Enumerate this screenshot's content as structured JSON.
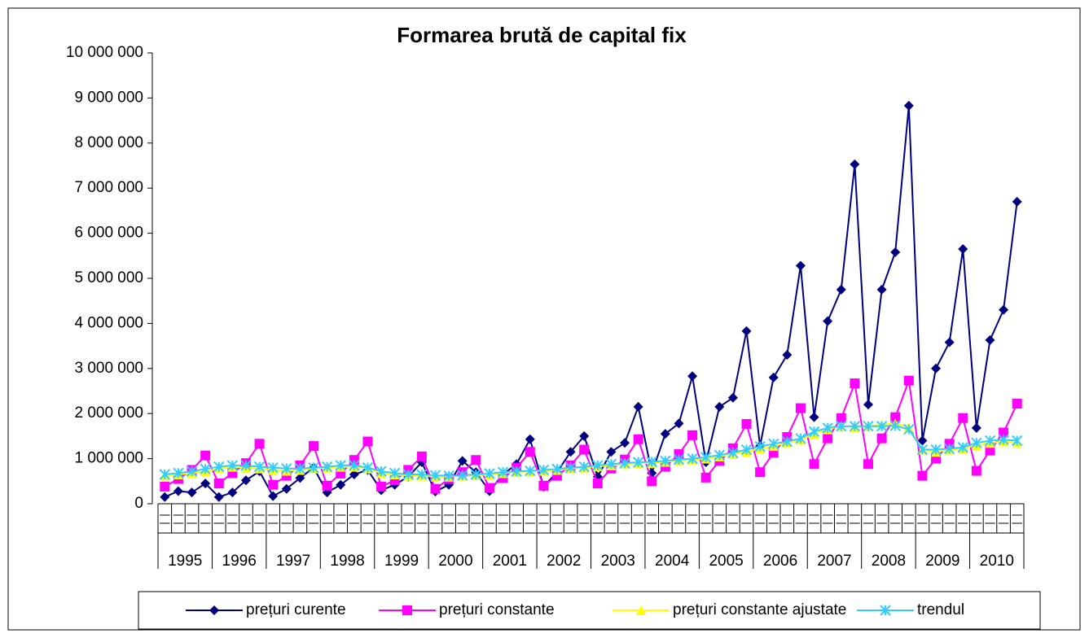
{
  "chart_data": {
    "type": "line",
    "title": "Formarea brută de capital fix",
    "categories": [
      null,
      null,
      null,
      null,
      null,
      null,
      null,
      null,
      null,
      null,
      null,
      null,
      null,
      null,
      null,
      null,
      null,
      null,
      null,
      null,
      null,
      null,
      null,
      null,
      null,
      null,
      null,
      null,
      null,
      null,
      null,
      null,
      null,
      null,
      null,
      null,
      null,
      null,
      null,
      null,
      null,
      null,
      null,
      null,
      null,
      null,
      null,
      null,
      null,
      null,
      null,
      null,
      null,
      null,
      null,
      null,
      null,
      null,
      null,
      null,
      null,
      null,
      null,
      null
    ],
    "years": [
      "1995",
      "1996",
      "1997",
      "1998",
      "1999",
      "2000",
      "2001",
      "2002",
      "2003",
      "2004",
      "2005",
      "2006",
      "2007",
      "2008",
      "2009",
      "2010"
    ],
    "series": [
      {
        "name": "prețuri curente",
        "color": "#000080",
        "marker": "diamond",
        "values": [
          150000,
          280000,
          250000,
          450000,
          150000,
          250000,
          520000,
          720000,
          170000,
          330000,
          570000,
          800000,
          250000,
          420000,
          650000,
          750000,
          300000,
          420000,
          600000,
          920000,
          270000,
          420000,
          950000,
          700000,
          280000,
          650000,
          880000,
          1430000,
          380000,
          700000,
          1150000,
          1500000,
          600000,
          1150000,
          1350000,
          2150000,
          680000,
          1550000,
          1780000,
          2830000,
          920000,
          2150000,
          2350000,
          3830000,
          1280000,
          2800000,
          3300000,
          5280000,
          1920000,
          4050000,
          4750000,
          7530000,
          2200000,
          4750000,
          5580000,
          8830000,
          1400000,
          3000000,
          3580000,
          5650000,
          1680000,
          3630000,
          4300000,
          6700000
        ]
      },
      {
        "name": "prețuri constante",
        "color": "#ff00ff",
        "marker": "square",
        "values": [
          380000,
          550000,
          750000,
          1070000,
          450000,
          680000,
          900000,
          1330000,
          420000,
          620000,
          850000,
          1280000,
          400000,
          670000,
          970000,
          1380000,
          380000,
          520000,
          750000,
          1050000,
          330000,
          550000,
          700000,
          970000,
          350000,
          570000,
          800000,
          1150000,
          400000,
          620000,
          850000,
          1200000,
          450000,
          780000,
          980000,
          1430000,
          500000,
          820000,
          1100000,
          1520000,
          580000,
          950000,
          1230000,
          1770000,
          700000,
          1130000,
          1480000,
          2120000,
          880000,
          1450000,
          1900000,
          2670000,
          880000,
          1450000,
          1920000,
          2730000,
          620000,
          1000000,
          1330000,
          1900000,
          730000,
          1180000,
          1580000,
          2220000
        ]
      },
      {
        "name": "prețuri constante ajustate",
        "color": "#ffff00",
        "marker": "triangle",
        "values": [
          620000,
          650000,
          680000,
          720000,
          780000,
          820000,
          800000,
          780000,
          750000,
          730000,
          750000,
          780000,
          800000,
          820000,
          820000,
          780000,
          680000,
          650000,
          620000,
          620000,
          600000,
          600000,
          620000,
          630000,
          650000,
          680000,
          700000,
          720000,
          730000,
          750000,
          780000,
          800000,
          830000,
          850000,
          880000,
          900000,
          900000,
          930000,
          950000,
          980000,
          1000000,
          1050000,
          1100000,
          1150000,
          1220000,
          1280000,
          1350000,
          1420000,
          1550000,
          1650000,
          1720000,
          1700000,
          1720000,
          1750000,
          1780000,
          1700000,
          1200000,
          1150000,
          1200000,
          1220000,
          1300000,
          1350000,
          1380000,
          1350000
        ]
      },
      {
        "name": "trendul",
        "color": "#33ccff",
        "marker": "x",
        "values": [
          650000,
          680000,
          720000,
          770000,
          820000,
          850000,
          850000,
          820000,
          800000,
          780000,
          780000,
          800000,
          820000,
          850000,
          850000,
          800000,
          720000,
          680000,
          650000,
          650000,
          630000,
          620000,
          630000,
          650000,
          670000,
          700000,
          720000,
          730000,
          750000,
          770000,
          800000,
          820000,
          850000,
          880000,
          900000,
          920000,
          930000,
          950000,
          980000,
          1000000,
          1030000,
          1080000,
          1130000,
          1200000,
          1270000,
          1330000,
          1380000,
          1450000,
          1600000,
          1680000,
          1720000,
          1720000,
          1720000,
          1720000,
          1730000,
          1650000,
          1200000,
          1200000,
          1220000,
          1250000,
          1350000,
          1400000,
          1420000,
          1400000
        ]
      }
    ],
    "ylim": [
      0,
      10000000
    ],
    "yticks": [
      0,
      {
        "value": 1000000,
        "label": "1 000 000"
      },
      {
        "value": 2000000,
        "label": "2 000 000"
      },
      {
        "value": 3000000,
        "label": "3 000 000"
      },
      {
        "value": 4000000,
        "label": "4 000 000"
      },
      {
        "value": 5000000,
        "label": "5 000 000"
      },
      {
        "value": 6000000,
        "label": "6 000 000"
      },
      {
        "value": 7000000,
        "label": "7 000 000"
      },
      {
        "value": 8000000,
        "label": "8 000 000"
      },
      {
        "value": 9000000,
        "label": "9 000 000"
      },
      {
        "value": 10000000,
        "label": "10 000 000"
      }
    ],
    "grid": false,
    "legend": "bottom"
  }
}
